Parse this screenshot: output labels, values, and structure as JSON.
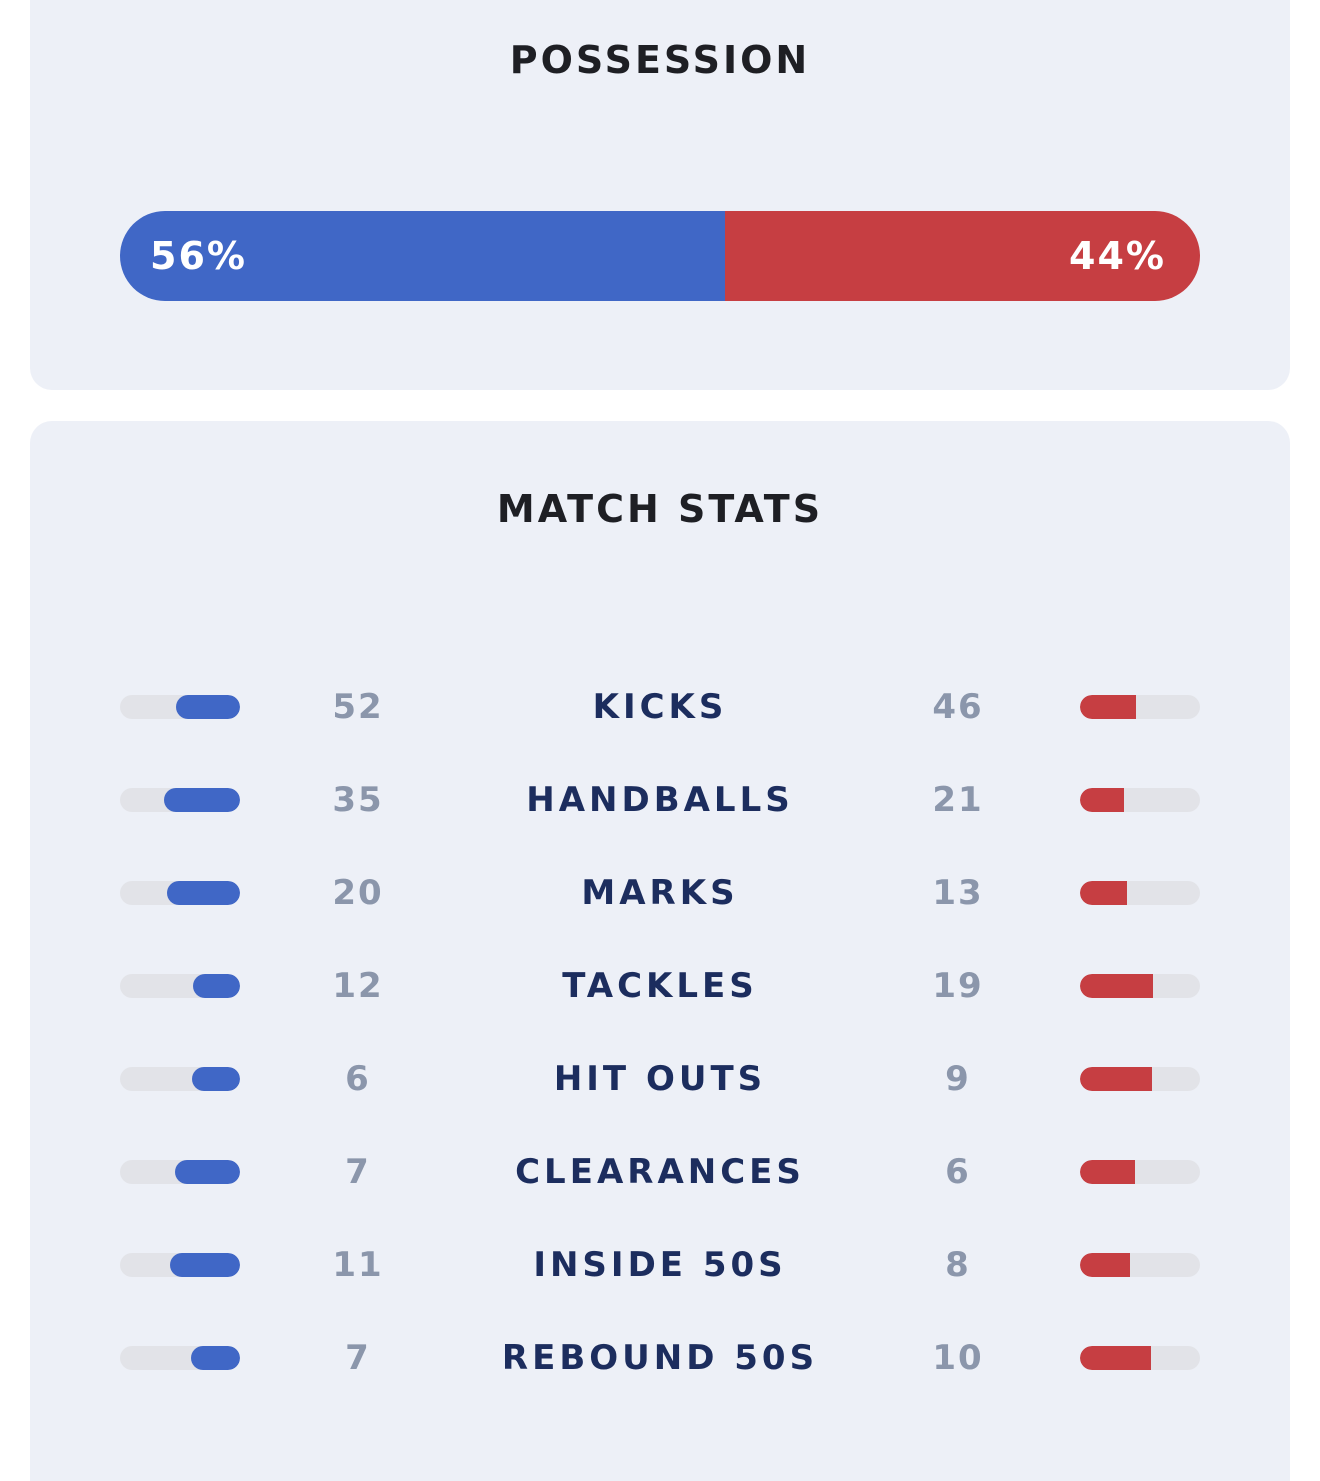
{
  "possession": {
    "title": "POSSESSION",
    "home": {
      "label": "56%",
      "value": 56
    },
    "away": {
      "label": "44%",
      "value": 44
    }
  },
  "match_stats": {
    "title": "MATCH STATS",
    "rows": [
      {
        "label": "KICKS",
        "home": "52",
        "away": "46",
        "home_share": 0.53,
        "away_share": 0.47
      },
      {
        "label": "HANDBALLS",
        "home": "35",
        "away": "21",
        "home_share": 0.63,
        "away_share": 0.37
      },
      {
        "label": "MARKS",
        "home": "20",
        "away": "13",
        "home_share": 0.61,
        "away_share": 0.39
      },
      {
        "label": "TACKLES",
        "home": "12",
        "away": "19",
        "home_share": 0.39,
        "away_share": 0.61
      },
      {
        "label": "HIT OUTS",
        "home": "6",
        "away": "9",
        "home_share": 0.4,
        "away_share": 0.6
      },
      {
        "label": "CLEARANCES",
        "home": "7",
        "away": "6",
        "home_share": 0.54,
        "away_share": 0.46
      },
      {
        "label": "INSIDE 50S",
        "home": "11",
        "away": "8",
        "home_share": 0.58,
        "away_share": 0.42
      },
      {
        "label": "REBOUND 50S",
        "home": "7",
        "away": "10",
        "home_share": 0.41,
        "away_share": 0.59
      }
    ]
  },
  "colors": {
    "home": "#4067c6",
    "away": "#c63e42",
    "track": "#e2e3e8",
    "card": "#edf0f7"
  }
}
